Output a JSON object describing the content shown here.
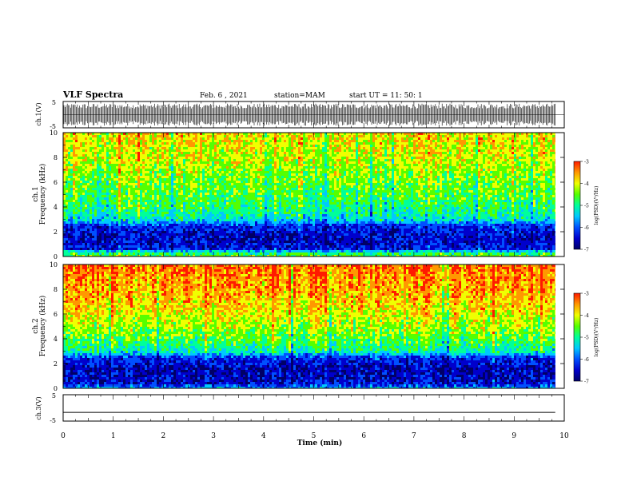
{
  "header": {
    "title": "VLF Spectra",
    "date": "Feb. 6 , 2021",
    "station": "station=MAM",
    "start": "start UT = 11: 50: 1"
  },
  "colors": {
    "colormap": [
      "#000066",
      "#0000cc",
      "#0050ff",
      "#00c8ff",
      "#00ff9a",
      "#55ff00",
      "#f0ff00",
      "#ff9800",
      "#ff1a00"
    ],
    "waveform": "#000000",
    "axis": "#000000"
  },
  "chart_data": [
    {
      "type": "line",
      "panel": "waveform-ch1",
      "ylabel": "ch.1(V)",
      "ylim": [
        -5,
        5
      ],
      "yticks": [
        "5",
        "-5"
      ],
      "x_range_min": [
        0,
        9.82
      ],
      "description_of_values": "rapidly oscillating signal with amplitude near ±4 V",
      "amplitude_V": 4.2
    },
    {
      "type": "heatmap",
      "panel": "spectrogram-ch1",
      "ylabel_line1": "ch.1",
      "ylabel_line2": "Frequency (kHz)",
      "ylim": [
        0,
        10
      ],
      "yticks": [
        "0",
        "2",
        "4",
        "6",
        "8",
        "10"
      ],
      "x_range_min": [
        0,
        9.82
      ],
      "colorbar": {
        "label": "log(PSD)(V²/Hz)",
        "range": [
          -7,
          -3
        ],
        "ticks": [
          "-3",
          "-4",
          "-5",
          "-6",
          "-7"
        ]
      },
      "frequency_profile_kHz": [
        [
          0.0,
          -4.6
        ],
        [
          0.3,
          -4.9
        ],
        [
          0.6,
          -6.2
        ],
        [
          1.5,
          -6.4
        ],
        [
          2.5,
          -6.1
        ],
        [
          2.9,
          -5.3
        ],
        [
          3.5,
          -5.0
        ],
        [
          4.5,
          -4.75
        ],
        [
          6.0,
          -4.5
        ],
        [
          8.0,
          -4.2
        ],
        [
          10.0,
          -4.0
        ]
      ]
    },
    {
      "type": "heatmap",
      "panel": "spectrogram-ch2",
      "ylabel_line1": "ch.2",
      "ylabel_line2": "Frequency (kHz)",
      "ylim": [
        0,
        10
      ],
      "yticks": [
        "0",
        "2",
        "4",
        "6",
        "8",
        "10"
      ],
      "x_range_min": [
        0,
        9.82
      ],
      "colorbar": {
        "label": "log(PSD)(V²/Hz)",
        "range": [
          -7,
          -3
        ],
        "ticks": [
          "-3",
          "-4",
          "-5",
          "-6",
          "-7"
        ]
      },
      "frequency_profile_kHz": [
        [
          0.0,
          -5.6
        ],
        [
          0.4,
          -6.3
        ],
        [
          1.5,
          -6.5
        ],
        [
          2.5,
          -6.1
        ],
        [
          2.9,
          -5.2
        ],
        [
          3.5,
          -4.9
        ],
        [
          4.5,
          -4.5
        ],
        [
          6.0,
          -4.1
        ],
        [
          8.0,
          -3.75
        ],
        [
          10.0,
          -3.55
        ]
      ]
    },
    {
      "type": "line",
      "panel": "waveform-ch3",
      "ylabel": "ch.3(V)",
      "ylim": [
        -5,
        5
      ],
      "yticks": [
        "5",
        "0",
        "-5"
      ],
      "x_range_min": [
        0,
        9.82
      ],
      "constant_value_V": -1.7
    }
  ],
  "xaxis": {
    "label": "Time (min)",
    "ticks": [
      "0",
      "1",
      "2",
      "3",
      "4",
      "5",
      "6",
      "7",
      "8",
      "9",
      "10"
    ],
    "range": [
      0,
      10
    ]
  }
}
